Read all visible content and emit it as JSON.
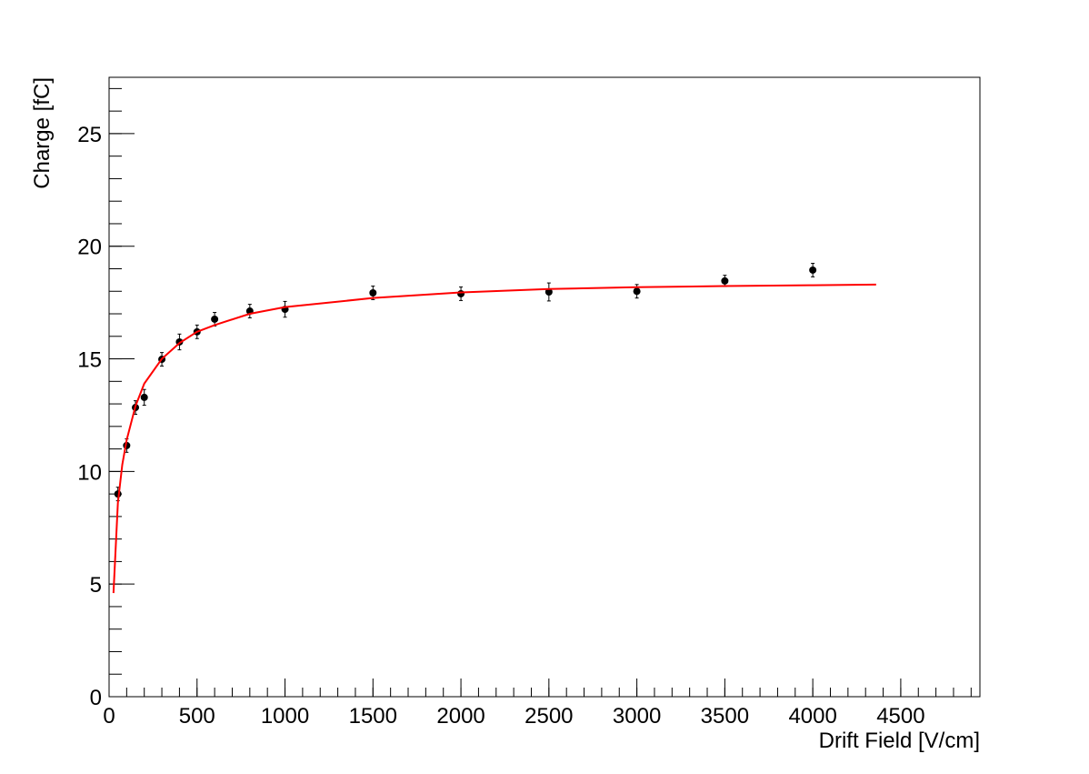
{
  "chart_data": {
    "type": "scatter",
    "x_label": "Drift Field [V/cm]",
    "y_label": "Charge [fC]",
    "xlim": [
      0,
      4950
    ],
    "ylim": [
      0,
      27.5
    ],
    "xticks": [
      0,
      500,
      1000,
      1500,
      2000,
      2500,
      3000,
      3500,
      4000,
      4500
    ],
    "yticks": [
      0,
      5,
      10,
      15,
      20,
      25
    ],
    "series": [
      {
        "type": "scatter",
        "color": "#000000",
        "x": [
          50,
          100,
          150,
          200,
          300,
          400,
          500,
          600,
          800,
          1000,
          1500,
          2000,
          2500,
          3000,
          3500,
          4000
        ],
        "values": [
          9.0,
          11.15,
          12.84,
          13.29,
          14.98,
          15.75,
          16.2,
          16.76,
          17.12,
          17.2,
          17.93,
          17.89,
          17.97,
          18.0,
          18.46,
          18.94
        ],
        "errors": [
          0.3,
          0.3,
          0.3,
          0.35,
          0.3,
          0.35,
          0.3,
          0.3,
          0.3,
          0.35,
          0.3,
          0.3,
          0.4,
          0.3,
          0.25,
          0.3
        ]
      },
      {
        "type": "line",
        "color": "#ff0000",
        "x": [
          25,
          50,
          75,
          100,
          150,
          200,
          300,
          400,
          500,
          600,
          800,
          1000,
          1500,
          2000,
          2500,
          3000,
          3500,
          4000,
          4360
        ],
        "values": [
          4.6,
          8.6,
          10.3,
          11.4,
          12.9,
          13.9,
          15.0,
          15.7,
          16.2,
          16.5,
          17.0,
          17.3,
          17.7,
          17.95,
          18.1,
          18.18,
          18.23,
          18.27,
          18.3
        ]
      }
    ]
  }
}
